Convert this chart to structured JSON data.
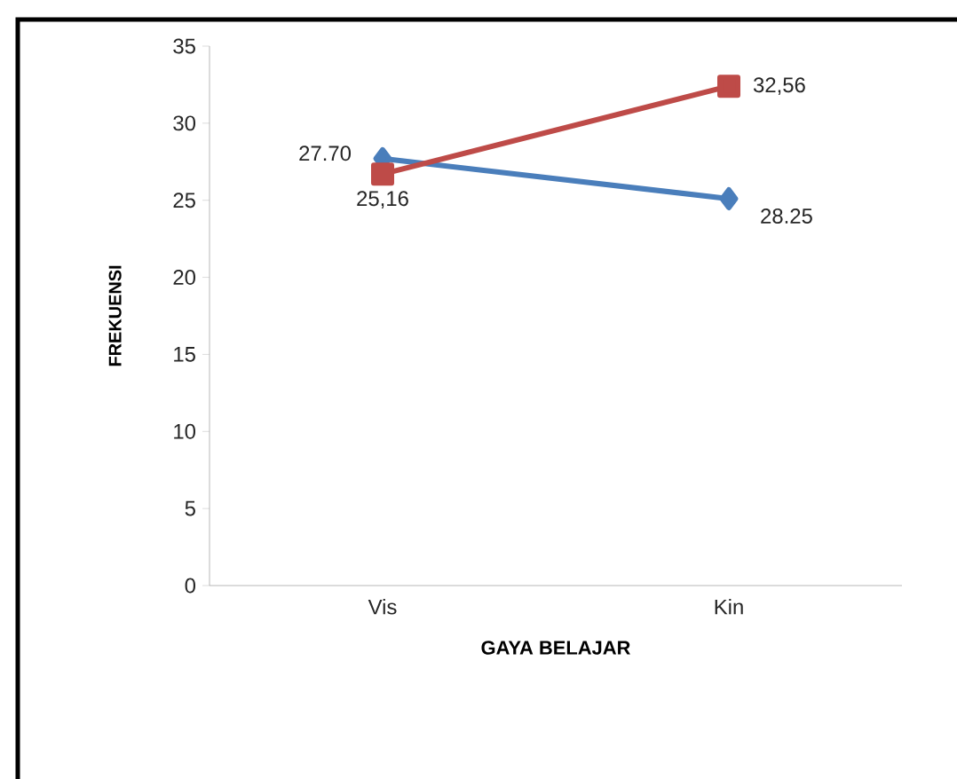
{
  "chart_data": {
    "type": "line",
    "xlabel": "GAYA BELAJAR",
    "ylabel": "FREKUENSI",
    "categories": [
      "Vis",
      "Kin"
    ],
    "ylim": [
      0,
      35
    ],
    "yticks": [
      0,
      5,
      10,
      15,
      20,
      25,
      30,
      35
    ],
    "annotations": [
      "27.70",
      "25,16",
      "32,56",
      "28.25"
    ],
    "series": [
      {
        "color": "#4a7ebb",
        "marker": "diamond",
        "values": [
          27.7,
          25.1
        ]
      },
      {
        "color": "#be4b48",
        "marker": "square",
        "values": [
          26.7,
          32.4
        ]
      }
    ]
  }
}
